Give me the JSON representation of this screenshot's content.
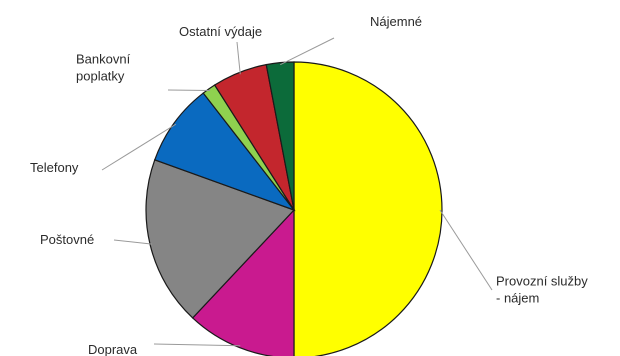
{
  "chart_data": {
    "type": "pie",
    "title": "",
    "slices": [
      {
        "label": [
          "Provozní služby",
          "- nájem"
        ],
        "value": 50.0,
        "color": "#ffff00"
      },
      {
        "label": [
          "Doprava"
        ],
        "value": 12.0,
        "color": "#c91a8f"
      },
      {
        "label": [
          "Poštovné"
        ],
        "value": 18.5,
        "color": "#858585"
      },
      {
        "label": [
          "Telefony"
        ],
        "value": 9.0,
        "color": "#0a6ac0"
      },
      {
        "label": [
          "Bankovní",
          "poplatky"
        ],
        "value": 1.5,
        "color": "#8fd14f"
      },
      {
        "label": [
          "Ostatní výdaje"
        ],
        "value": 6.0,
        "color": "#c3262d"
      },
      {
        "label": [
          "Nájemné"
        ],
        "value": 3.0,
        "color": "#0c6b3a"
      }
    ]
  }
}
